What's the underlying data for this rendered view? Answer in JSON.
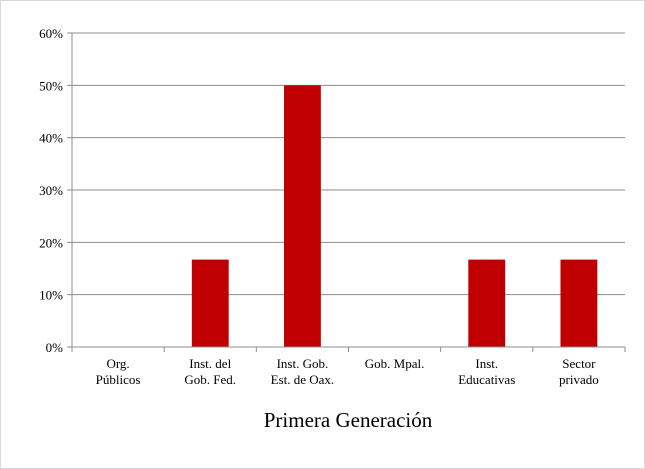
{
  "chart_data": {
    "type": "bar",
    "xlabel": "Primera Generación",
    "categories": [
      "Org.\nPúblicos",
      "Inst. del\nGob. Fed.",
      "Inst. Gob.\nEst. de Oax.",
      "Gob. Mpal.",
      "Inst.\nEducativas",
      "Sector\nprivado"
    ],
    "values": [
      0,
      16.7,
      50,
      0,
      16.7,
      16.7
    ],
    "color": "#c00000",
    "ylim": [
      0,
      60
    ],
    "yticks": [
      {
        "value": 0,
        "label": "0%"
      },
      {
        "value": 10,
        "label": "10%"
      },
      {
        "value": 20,
        "label": "20%"
      },
      {
        "value": 30,
        "label": "30%"
      },
      {
        "value": 40,
        "label": "40%"
      },
      {
        "value": 50,
        "label": "50%"
      },
      {
        "value": 60,
        "label": "60%"
      }
    ],
    "grid": true
  }
}
